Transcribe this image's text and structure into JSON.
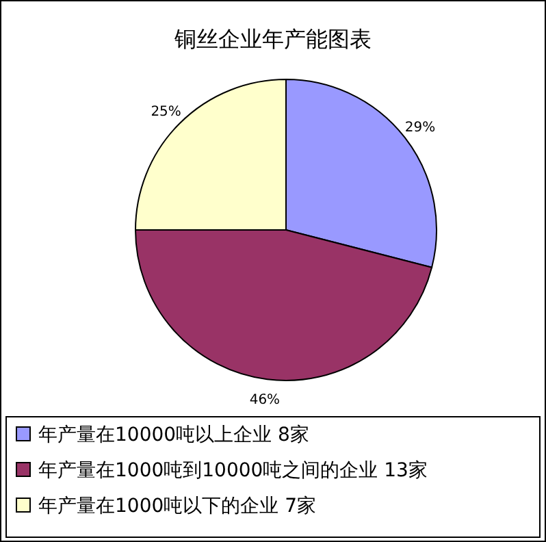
{
  "chart_data": {
    "type": "pie",
    "title": "铜丝企业年产能图表",
    "categories": [
      "年产量在10000吨以上企业 8家",
      "年产量在1000吨到10000吨之间的企业 13家",
      "年产量在1000吨以下的企业 7家"
    ],
    "values": [
      29,
      46,
      25
    ],
    "colors": [
      "#9999ff",
      "#993366",
      "#ffffcc"
    ],
    "value_labels": [
      "29%",
      "46%",
      "25%"
    ],
    "legend": "bottom"
  }
}
